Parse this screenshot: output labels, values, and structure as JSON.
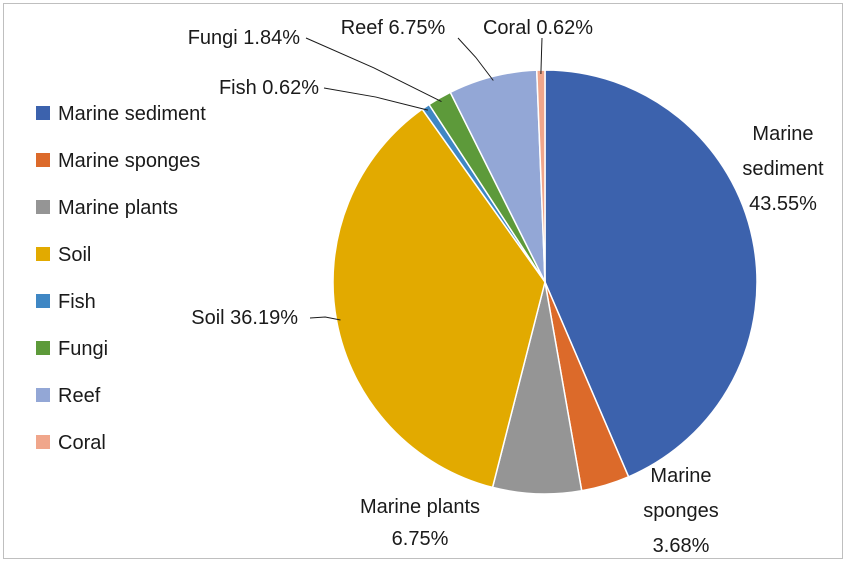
{
  "chart_data": {
    "type": "pie",
    "title": "",
    "legend_position": "left",
    "slices": [
      {
        "name": "Marine sediment",
        "value": 43.55,
        "label": "Marine sediment 43.55%",
        "color": "#3c62ad"
      },
      {
        "name": "Marine sponges",
        "value": 3.68,
        "label": "Marine sponges 3.68%",
        "color": "#dc6a2a"
      },
      {
        "name": "Marine plants",
        "value": 6.75,
        "label": "Marine plants 6.75%",
        "color": "#959595"
      },
      {
        "name": "Soil",
        "value": 36.19,
        "label": "Soil 36.19%",
        "color": "#e2aa00"
      },
      {
        "name": "Fish",
        "value": 0.62,
        "label": "Fish 0.62%",
        "color": "#3f87c4"
      },
      {
        "name": "Fungi",
        "value": 1.84,
        "label": "Fungi 1.84%",
        "color": "#5d9a3a"
      },
      {
        "name": "Reef",
        "value": 6.75,
        "label": "Reef 6.75%",
        "color": "#93a7d6"
      },
      {
        "name": "Coral",
        "value": 0.62,
        "label": "Coral 0.62%",
        "color": "#f0a68b"
      }
    ]
  }
}
